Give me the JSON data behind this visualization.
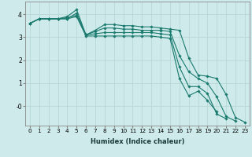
{
  "xlabel": "Humidex (Indice chaleur)",
  "xlim": [
    -0.5,
    23.5
  ],
  "ylim": [
    -0.85,
    4.55
  ],
  "bg_color": "#ceeaea",
  "grid_color": "#b8d8d8",
  "line_color": "#1a7a6e",
  "marker": "D",
  "markersize": 1.8,
  "linewidth": 0.8,
  "lines": [
    [
      3.6,
      3.8,
      3.8,
      3.8,
      3.9,
      4.2,
      3.1,
      3.3,
      3.55,
      3.55,
      3.5,
      3.5,
      3.45,
      3.45,
      3.4,
      3.35,
      3.3,
      2.1,
      1.35,
      1.3,
      1.2,
      0.5,
      -0.5,
      -0.7
    ],
    [
      3.6,
      3.8,
      3.8,
      3.8,
      3.85,
      3.95,
      3.1,
      3.25,
      3.4,
      3.4,
      3.35,
      3.35,
      3.3,
      3.3,
      3.3,
      3.25,
      2.2,
      1.5,
      1.2,
      1.0,
      0.4,
      -0.45,
      -0.65,
      null
    ],
    [
      3.6,
      3.8,
      3.8,
      3.8,
      3.8,
      4.05,
      3.1,
      3.15,
      3.2,
      3.2,
      3.2,
      3.2,
      3.2,
      3.2,
      3.15,
      3.1,
      1.7,
      0.85,
      0.85,
      0.55,
      -0.35,
      -0.55,
      null,
      null
    ],
    [
      3.6,
      3.8,
      3.8,
      3.8,
      3.8,
      3.9,
      3.05,
      3.05,
      3.05,
      3.05,
      3.05,
      3.05,
      3.05,
      3.05,
      3.0,
      2.95,
      1.2,
      0.45,
      0.65,
      0.25,
      -0.25,
      null,
      null,
      null
    ]
  ],
  "yticks": [
    -0.0,
    1,
    2,
    3,
    4
  ],
  "ytick_labels": [
    "-0",
    "1",
    "2",
    "3",
    "4"
  ],
  "xticks": [
    0,
    1,
    2,
    3,
    4,
    5,
    6,
    7,
    8,
    9,
    10,
    11,
    12,
    13,
    14,
    15,
    16,
    17,
    18,
    19,
    20,
    21,
    22,
    23
  ],
  "xlabel_fontsize": 6.0,
  "xlabel_fontweight": "bold",
  "tick_fontsize": 5.2,
  "ytick_fontsize": 5.5
}
